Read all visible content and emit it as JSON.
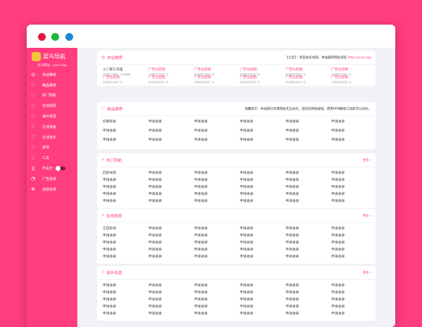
{
  "colors": {
    "accent": "#ff3d7f",
    "dot_red": "#e5173f",
    "dot_green": "#20b53b",
    "dot_blue": "#1a8ad4"
  },
  "sidebar": {
    "logo": "菜鸟导航",
    "subtitle": "永久网址：yuxx.top",
    "items": [
      {
        "label": "本站推荐",
        "icon": "globe-icon",
        "g": "◎"
      },
      {
        "label": "精品推荐",
        "icon": "heart-icon",
        "g": "♡"
      },
      {
        "label": "热门导航",
        "icon": "heart-icon",
        "g": "♡"
      },
      {
        "label": "在线视频",
        "icon": "heart-icon",
        "g": "♡"
      },
      {
        "label": "海外资源",
        "icon": "heart-icon",
        "g": "♡"
      },
      {
        "label": "在线漫画",
        "icon": "heart-icon",
        "g": "♡"
      },
      {
        "label": "在线音乐",
        "icon": "heart-icon",
        "g": "♡"
      },
      {
        "label": "其他",
        "icon": "heart-icon",
        "g": "♡"
      },
      {
        "label": "工具",
        "icon": "heart-icon",
        "g": "♡"
      },
      {
        "label": "开关灯:",
        "icon": "bulb-icon",
        "g": "♀",
        "toggle": true
      },
      {
        "label": "广告投放",
        "icon": "chart-icon",
        "g": "◔"
      },
      {
        "label": "自助收录",
        "icon": "plus-circle-icon",
        "g": "⊕"
      }
    ]
  },
  "sections": [
    {
      "title": "本站推荐",
      "icon": "globe-icon",
      "g": "◎",
      "notice_prefix": "【公告】：欢迎站长加链，本站最新网址域名 ",
      "notice_link": "http://yuxx.top",
      "ads": [
        {
          "name": "小二郎工作室",
          "desc": "本站接口教程、应用编程",
          "plain": true
        },
        {
          "name": "广告位招租",
          "desc": "欢迎联系投放广告"
        },
        {
          "name": "广告位招租",
          "desc": "欢迎联系投放广告"
        },
        {
          "name": "广告位招租",
          "desc": "欢迎联系投放广告"
        },
        {
          "name": "广告位招租",
          "desc": "欢迎联系投放广告"
        },
        {
          "name": "广告位招租",
          "desc": "欢迎联系投放广告"
        },
        {
          "name": "广告位招租",
          "desc": "欢迎联系投放广告"
        },
        {
          "name": "广告位招租",
          "desc": "欢迎联系投放广告"
        },
        {
          "name": "广告位招租",
          "desc": "欢迎联系投放广告"
        },
        {
          "name": "广告位招租",
          "desc": "欢迎联系投放广告"
        },
        {
          "name": "广告位招租",
          "desc": "欢迎联系投放广告"
        },
        {
          "name": "广告位招租",
          "desc": "欢迎联系投放广告"
        }
      ]
    },
    {
      "title": "精品推荐",
      "icon": "heart-icon",
      "g": "♡",
      "notice_prefix": "温馨提示：本站部分资源网站无法访问，是因为网站被墙，使用VPN翻墙工具即可以访问。",
      "links": [
        "抖攀影视",
        "申请收录",
        "申请收录",
        "申请收录",
        "申请收录",
        "申请收录",
        "申请收录",
        "申请收录",
        "申请收录",
        "申请收录",
        "申请收录",
        "申请收录",
        "申请收录",
        "申请收录",
        "申请收录",
        "申请收录",
        "申请收录",
        "申请收录"
      ]
    },
    {
      "title": "热门导航",
      "icon": "fire-icon",
      "g": "⚡",
      "more": "更多 ›",
      "links": [
        "韵影导航",
        "申请收录",
        "申请收录",
        "申请收录",
        "申请收录",
        "申请收录",
        "申请收录",
        "申请收录",
        "申请收录",
        "申请收录",
        "申请收录",
        "申请收录",
        "申请收录",
        "申请收录",
        "申请收录",
        "申请收录",
        "申请收录",
        "申请收录",
        "申请收录",
        "申请收录",
        "申请收录",
        "申请收录",
        "申请收录",
        "申请收录",
        "申请收录",
        "申请收录",
        "申请收录",
        "申请收录",
        "申请收录",
        "申请收录"
      ]
    },
    {
      "title": "在线视频",
      "icon": "fire-icon",
      "g": "⚡",
      "more": "更多 ›",
      "links": [
        "艾田影视",
        "申请收录",
        "申请收录",
        "申请收录",
        "申请收录",
        "申请收录",
        "申请收录",
        "申请收录",
        "申请收录",
        "申请收录",
        "申请收录",
        "申请收录",
        "申请收录",
        "申请收录",
        "申请收录",
        "申请收录",
        "申请收录",
        "申请收录",
        "申请收录",
        "申请收录",
        "申请收录",
        "申请收录",
        "申请收录",
        "申请收录",
        "申请收录",
        "申请收录",
        "申请收录",
        "申请收录",
        "申请收录",
        "申请收录"
      ]
    },
    {
      "title": "海外资源",
      "icon": "fire-icon",
      "g": "⚡",
      "more": "更多 ›",
      "links": [
        "申请收录",
        "申请收录",
        "申请收录",
        "申请收录",
        "申请收录",
        "申请收录",
        "申请收录",
        "申请收录",
        "申请收录",
        "申请收录",
        "申请收录",
        "申请收录",
        "申请收录",
        "申请收录",
        "申请收录",
        "申请收录",
        "申请收录",
        "申请收录",
        "申请收录",
        "申请收录",
        "申请收录",
        "申请收录",
        "申请收录",
        "申请收录",
        "申请收录",
        "申请收录",
        "申请收录",
        "申请收录",
        "申请收录",
        "申请收录"
      ]
    }
  ]
}
